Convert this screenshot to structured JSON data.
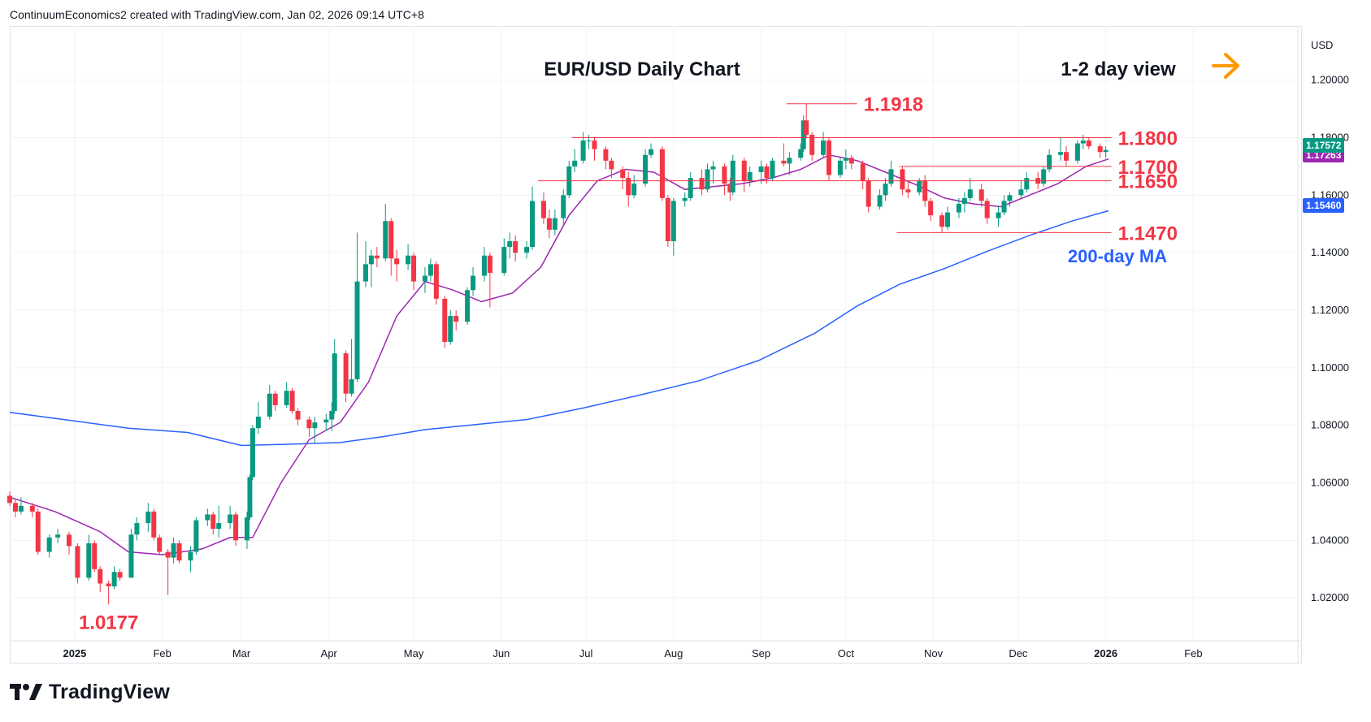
{
  "header": {
    "text": "ContinuumEconomics2 created with TradingView.com, Jan 02, 2026 09:14 UTC+8"
  },
  "brand": {
    "name": "TradingView",
    "logo_icon": "tradingview-logo-icon"
  },
  "colors": {
    "up": "#089981",
    "down": "#f23645",
    "ma20": "#9c27b0",
    "ma200": "#2962ff",
    "level_line": "#f23645",
    "level_text": "#f23645",
    "arrow": "#ff9800",
    "grid": "#f0f3fa",
    "axis_text": "#131722",
    "current_badge": "#089981",
    "ma20_badge": "#9c27b0",
    "ma200_badge": "#2962ff"
  },
  "chart_data": {
    "type": "candlestick",
    "title": "EUR/USD Daily Chart",
    "view_label": "1-2 day view",
    "view_icon": "arrow-right-icon",
    "currency": "USD",
    "y_axis": {
      "ticks": [
        "1.20000",
        "1.18000",
        "1.16000",
        "1.14000",
        "1.12000",
        "1.10000",
        "1.08000",
        "1.06000",
        "1.04000",
        "1.02000"
      ],
      "ylim": [
        1.0,
        1.216
      ]
    },
    "x_axis": {
      "ticks": [
        "2025",
        "Feb",
        "Mar",
        "Apr",
        "May",
        "Jun",
        "Jul",
        "Aug",
        "Sep",
        "Oct",
        "Nov",
        "Dec",
        "2026",
        "Feb"
      ],
      "range": [
        "2024-12-09",
        "2026-03-10"
      ]
    },
    "price_labels": {
      "current": "1.17572",
      "ma20": "1.17263",
      "ma200": "1.15460"
    },
    "levels": [
      {
        "label": "1.1918",
        "value": 1.1918,
        "from": "2025-09-10",
        "to": "2025-10-05"
      },
      {
        "label": "1.1800",
        "value": 1.18,
        "from": "2025-06-26",
        "to": "2026-01-03"
      },
      {
        "label": "1.1700",
        "value": 1.17,
        "from": "2025-10-20",
        "to": "2026-01-03"
      },
      {
        "label": "1.1650",
        "value": 1.165,
        "from": "2025-06-14",
        "to": "2026-01-03"
      },
      {
        "label": "1.1470",
        "value": 1.147,
        "from": "2025-10-19",
        "to": "2026-01-03"
      },
      {
        "label": "1.0177",
        "value": 1.0177,
        "from": "2025-01-13",
        "to": "2025-01-13"
      }
    ],
    "ma200_label": "200-day MA",
    "ma200_series": [
      [
        "2024-12-09",
        1.0845
      ],
      [
        "2025-01-01",
        1.0815
      ],
      [
        "2025-01-20",
        1.079
      ],
      [
        "2025-02-10",
        1.0775
      ],
      [
        "2025-03-01",
        1.073
      ],
      [
        "2025-03-20",
        1.0735
      ],
      [
        "2025-04-05",
        1.074
      ],
      [
        "2025-04-20",
        1.076
      ],
      [
        "2025-05-05",
        1.0785
      ],
      [
        "2025-05-20",
        1.08
      ],
      [
        "2025-06-10",
        1.082
      ],
      [
        "2025-06-30",
        1.086
      ],
      [
        "2025-07-20",
        1.0905
      ],
      [
        "2025-08-10",
        1.0955
      ],
      [
        "2025-08-31",
        1.1025
      ],
      [
        "2025-09-20",
        1.112
      ],
      [
        "2025-10-05",
        1.1215
      ],
      [
        "2025-10-20",
        1.129
      ],
      [
        "2025-11-05",
        1.1345
      ],
      [
        "2025-11-20",
        1.1405
      ],
      [
        "2025-12-05",
        1.146
      ],
      [
        "2025-12-20",
        1.151
      ],
      [
        "2026-01-02",
        1.1546
      ]
    ],
    "ma20_series": [
      [
        "2024-12-09",
        1.055
      ],
      [
        "2024-12-25",
        1.05
      ],
      [
        "2025-01-10",
        1.043
      ],
      [
        "2025-01-20",
        1.036
      ],
      [
        "2025-02-01",
        1.035
      ],
      [
        "2025-02-15",
        1.037
      ],
      [
        "2025-02-25",
        1.041
      ],
      [
        "2025-03-05",
        1.041
      ],
      [
        "2025-03-15",
        1.06
      ],
      [
        "2025-03-25",
        1.075
      ],
      [
        "2025-04-05",
        1.081
      ],
      [
        "2025-04-15",
        1.095
      ],
      [
        "2025-04-25",
        1.118
      ],
      [
        "2025-05-05",
        1.13
      ],
      [
        "2025-05-15",
        1.127
      ],
      [
        "2025-05-25",
        1.123
      ],
      [
        "2025-06-05",
        1.126
      ],
      [
        "2025-06-15",
        1.135
      ],
      [
        "2025-06-25",
        1.153
      ],
      [
        "2025-07-05",
        1.165
      ],
      [
        "2025-07-15",
        1.169
      ],
      [
        "2025-07-25",
        1.168
      ],
      [
        "2025-08-05",
        1.162
      ],
      [
        "2025-08-15",
        1.163
      ],
      [
        "2025-08-25",
        1.164
      ],
      [
        "2025-09-05",
        1.166
      ],
      [
        "2025-09-15",
        1.169
      ],
      [
        "2025-09-25",
        1.174
      ],
      [
        "2025-10-05",
        1.172
      ],
      [
        "2025-10-15",
        1.168
      ],
      [
        "2025-10-25",
        1.164
      ],
      [
        "2025-11-05",
        1.159
      ],
      [
        "2025-11-15",
        1.157
      ],
      [
        "2025-11-25",
        1.156
      ],
      [
        "2025-12-05",
        1.16
      ],
      [
        "2025-12-15",
        1.164
      ],
      [
        "2025-12-25",
        1.17
      ],
      [
        "2026-01-02",
        1.1726
      ]
    ],
    "candles": [
      [
        "2024-12-09",
        1.0555,
        1.057,
        1.052,
        1.053
      ],
      [
        "2024-12-11",
        1.053,
        1.0545,
        1.048,
        1.05
      ],
      [
        "2024-12-13",
        1.05,
        1.055,
        1.049,
        1.052
      ],
      [
        "2024-12-17",
        1.052,
        1.053,
        1.048,
        1.05
      ],
      [
        "2024-12-19",
        1.05,
        1.051,
        1.035,
        1.036
      ],
      [
        "2024-12-23",
        1.036,
        1.042,
        1.034,
        1.041
      ],
      [
        "2024-12-26",
        1.041,
        1.044,
        1.039,
        1.042
      ],
      [
        "2024-12-30",
        1.042,
        1.043,
        1.035,
        1.038
      ],
      [
        "2025-01-02",
        1.038,
        1.039,
        1.025,
        1.027
      ],
      [
        "2025-01-06",
        1.027,
        1.042,
        1.026,
        1.039
      ],
      [
        "2025-01-08",
        1.039,
        1.04,
        1.029,
        1.03
      ],
      [
        "2025-01-10",
        1.03,
        1.031,
        1.022,
        1.025
      ],
      [
        "2025-01-13",
        1.025,
        1.026,
        1.0177,
        1.024
      ],
      [
        "2025-01-15",
        1.024,
        1.031,
        1.023,
        1.029
      ],
      [
        "2025-01-17",
        1.029,
        1.03,
        1.026,
        1.027
      ],
      [
        "2025-01-21",
        1.027,
        1.044,
        1.027,
        1.042
      ],
      [
        "2025-01-23",
        1.042,
        1.048,
        1.04,
        1.046
      ],
      [
        "2025-01-27",
        1.046,
        1.053,
        1.043,
        1.05
      ],
      [
        "2025-01-29",
        1.05,
        1.051,
        1.04,
        1.041
      ],
      [
        "2025-01-31",
        1.041,
        1.042,
        1.035,
        1.036
      ],
      [
        "2025-02-03",
        1.036,
        1.037,
        1.021,
        1.034
      ],
      [
        "2025-02-05",
        1.034,
        1.041,
        1.032,
        1.039
      ],
      [
        "2025-02-07",
        1.039,
        1.04,
        1.032,
        1.033
      ],
      [
        "2025-02-11",
        1.033,
        1.038,
        1.029,
        1.036
      ],
      [
        "2025-02-13",
        1.036,
        1.048,
        1.035,
        1.047
      ],
      [
        "2025-02-17",
        1.047,
        1.051,
        1.045,
        1.049
      ],
      [
        "2025-02-19",
        1.049,
        1.05,
        1.042,
        1.044
      ],
      [
        "2025-02-21",
        1.044,
        1.052,
        1.041,
        1.046
      ],
      [
        "2025-02-25",
        1.046,
        1.052,
        1.044,
        1.049
      ],
      [
        "2025-02-27",
        1.049,
        1.05,
        1.038,
        1.04
      ],
      [
        "2025-03-03",
        1.04,
        1.05,
        1.037,
        1.048
      ],
      [
        "2025-03-04",
        1.048,
        1.063,
        1.047,
        1.062
      ],
      [
        "2025-03-05",
        1.062,
        1.08,
        1.061,
        1.079
      ],
      [
        "2025-03-07",
        1.079,
        1.088,
        1.077,
        1.083
      ],
      [
        "2025-03-11",
        1.083,
        1.094,
        1.082,
        1.091
      ],
      [
        "2025-03-13",
        1.091,
        1.092,
        1.085,
        1.087
      ],
      [
        "2025-03-17",
        1.087,
        1.095,
        1.086,
        1.092
      ],
      [
        "2025-03-19",
        1.092,
        1.093,
        1.084,
        1.085
      ],
      [
        "2025-03-21",
        1.085,
        1.086,
        1.08,
        1.082
      ],
      [
        "2025-03-25",
        1.082,
        1.083,
        1.076,
        1.079
      ],
      [
        "2025-03-27",
        1.079,
        1.083,
        1.074,
        1.081
      ],
      [
        "2025-03-31",
        1.081,
        1.084,
        1.078,
        1.082
      ],
      [
        "2025-04-02",
        1.082,
        1.088,
        1.078,
        1.085
      ],
      [
        "2025-04-03",
        1.085,
        1.11,
        1.084,
        1.105
      ],
      [
        "2025-04-07",
        1.105,
        1.106,
        1.088,
        1.091
      ],
      [
        "2025-04-09",
        1.091,
        1.11,
        1.09,
        1.096
      ],
      [
        "2025-04-11",
        1.096,
        1.147,
        1.095,
        1.13
      ],
      [
        "2025-04-14",
        1.13,
        1.144,
        1.128,
        1.136
      ],
      [
        "2025-04-16",
        1.136,
        1.141,
        1.128,
        1.139
      ],
      [
        "2025-04-18",
        1.139,
        1.142,
        1.135,
        1.138
      ],
      [
        "2025-04-21",
        1.138,
        1.157,
        1.137,
        1.151
      ],
      [
        "2025-04-23",
        1.151,
        1.152,
        1.132,
        1.138
      ],
      [
        "2025-04-25",
        1.138,
        1.141,
        1.13,
        1.136
      ],
      [
        "2025-04-29",
        1.136,
        1.143,
        1.134,
        1.139
      ],
      [
        "2025-05-01",
        1.139,
        1.14,
        1.127,
        1.13
      ],
      [
        "2025-05-05",
        1.13,
        1.135,
        1.126,
        1.132
      ],
      [
        "2025-05-07",
        1.132,
        1.138,
        1.13,
        1.136
      ],
      [
        "2025-05-09",
        1.136,
        1.137,
        1.122,
        1.124
      ],
      [
        "2025-05-12",
        1.124,
        1.125,
        1.107,
        1.109
      ],
      [
        "2025-05-14",
        1.109,
        1.12,
        1.108,
        1.118
      ],
      [
        "2025-05-16",
        1.118,
        1.12,
        1.113,
        1.116
      ],
      [
        "2025-05-20",
        1.116,
        1.128,
        1.115,
        1.127
      ],
      [
        "2025-05-22",
        1.127,
        1.135,
        1.125,
        1.132
      ],
      [
        "2025-05-26",
        1.132,
        1.142,
        1.13,
        1.139
      ],
      [
        "2025-05-28",
        1.139,
        1.14,
        1.121,
        1.133
      ],
      [
        "2025-06-02",
        1.133,
        1.145,
        1.132,
        1.142
      ],
      [
        "2025-06-04",
        1.142,
        1.147,
        1.138,
        1.144
      ],
      [
        "2025-06-06",
        1.144,
        1.146,
        1.137,
        1.14
      ],
      [
        "2025-06-10",
        1.14,
        1.144,
        1.138,
        1.142
      ],
      [
        "2025-06-12",
        1.142,
        1.163,
        1.141,
        1.158
      ],
      [
        "2025-06-16",
        1.158,
        1.161,
        1.15,
        1.152
      ],
      [
        "2025-06-18",
        1.152,
        1.155,
        1.145,
        1.148
      ],
      [
        "2025-06-20",
        1.148,
        1.155,
        1.146,
        1.152
      ],
      [
        "2025-06-23",
        1.152,
        1.162,
        1.15,
        1.16
      ],
      [
        "2025-06-25",
        1.16,
        1.172,
        1.159,
        1.17
      ],
      [
        "2025-06-27",
        1.17,
        1.176,
        1.168,
        1.172
      ],
      [
        "2025-06-30",
        1.172,
        1.182,
        1.171,
        1.179
      ],
      [
        "2025-07-02",
        1.179,
        1.181,
        1.176,
        1.179
      ],
      [
        "2025-07-04",
        1.179,
        1.18,
        1.172,
        1.176
      ],
      [
        "2025-07-08",
        1.176,
        1.177,
        1.169,
        1.172
      ],
      [
        "2025-07-10",
        1.172,
        1.173,
        1.166,
        1.169
      ],
      [
        "2025-07-14",
        1.169,
        1.17,
        1.162,
        1.166
      ],
      [
        "2025-07-16",
        1.166,
        1.168,
        1.156,
        1.16
      ],
      [
        "2025-07-18",
        1.16,
        1.167,
        1.159,
        1.164
      ],
      [
        "2025-07-22",
        1.164,
        1.176,
        1.163,
        1.174
      ],
      [
        "2025-07-24",
        1.174,
        1.178,
        1.173,
        1.176
      ],
      [
        "2025-07-28",
        1.176,
        1.177,
        1.158,
        1.159
      ],
      [
        "2025-07-30",
        1.159,
        1.16,
        1.142,
        1.144
      ],
      [
        "2025-08-01",
        1.144,
        1.159,
        1.139,
        1.158
      ],
      [
        "2025-08-05",
        1.158,
        1.161,
        1.156,
        1.159
      ],
      [
        "2025-08-07",
        1.159,
        1.168,
        1.158,
        1.166
      ],
      [
        "2025-08-11",
        1.166,
        1.169,
        1.16,
        1.162
      ],
      [
        "2025-08-13",
        1.162,
        1.171,
        1.161,
        1.169
      ],
      [
        "2025-08-15",
        1.169,
        1.172,
        1.164,
        1.17
      ],
      [
        "2025-08-19",
        1.17,
        1.171,
        1.16,
        1.164
      ],
      [
        "2025-08-21",
        1.164,
        1.166,
        1.158,
        1.161
      ],
      [
        "2025-08-22",
        1.161,
        1.174,
        1.16,
        1.172
      ],
      [
        "2025-08-26",
        1.172,
        1.173,
        1.161,
        1.165
      ],
      [
        "2025-08-28",
        1.165,
        1.17,
        1.163,
        1.168
      ],
      [
        "2025-09-01",
        1.168,
        1.172,
        1.164,
        1.17
      ],
      [
        "2025-09-03",
        1.17,
        1.171,
        1.164,
        1.166
      ],
      [
        "2025-09-05",
        1.166,
        1.173,
        1.165,
        1.172
      ],
      [
        "2025-09-09",
        1.172,
        1.178,
        1.17,
        1.171
      ],
      [
        "2025-09-11",
        1.171,
        1.175,
        1.167,
        1.173
      ],
      [
        "2025-09-15",
        1.173,
        1.178,
        1.172,
        1.176
      ],
      [
        "2025-09-16",
        1.176,
        1.1878,
        1.175,
        1.186
      ],
      [
        "2025-09-17",
        1.186,
        1.1918,
        1.18,
        1.181
      ],
      [
        "2025-09-19",
        1.181,
        1.182,
        1.172,
        1.174
      ],
      [
        "2025-09-23",
        1.174,
        1.182,
        1.173,
        1.179
      ],
      [
        "2025-09-25",
        1.179,
        1.18,
        1.165,
        1.167
      ],
      [
        "2025-09-29",
        1.167,
        1.173,
        1.166,
        1.172
      ],
      [
        "2025-10-01",
        1.172,
        1.176,
        1.169,
        1.173
      ],
      [
        "2025-10-03",
        1.173,
        1.174,
        1.169,
        1.171
      ],
      [
        "2025-10-07",
        1.171,
        1.172,
        1.162,
        1.165
      ],
      [
        "2025-10-09",
        1.165,
        1.166,
        1.154,
        1.156
      ],
      [
        "2025-10-13",
        1.156,
        1.162,
        1.155,
        1.16
      ],
      [
        "2025-10-15",
        1.16,
        1.166,
        1.158,
        1.164
      ],
      [
        "2025-10-17",
        1.164,
        1.172,
        1.163,
        1.169
      ],
      [
        "2025-10-21",
        1.169,
        1.17,
        1.16,
        1.162
      ],
      [
        "2025-10-23",
        1.162,
        1.165,
        1.159,
        1.161
      ],
      [
        "2025-10-27",
        1.161,
        1.166,
        1.16,
        1.165
      ],
      [
        "2025-10-29",
        1.165,
        1.167,
        1.156,
        1.158
      ],
      [
        "2025-10-31",
        1.158,
        1.159,
        1.151,
        1.153
      ],
      [
        "2025-11-04",
        1.153,
        1.154,
        1.147,
        1.149
      ],
      [
        "2025-11-06",
        1.149,
        1.156,
        1.148,
        1.154
      ],
      [
        "2025-11-10",
        1.154,
        1.159,
        1.152,
        1.157
      ],
      [
        "2025-11-12",
        1.157,
        1.161,
        1.154,
        1.159
      ],
      [
        "2025-11-14",
        1.159,
        1.166,
        1.158,
        1.162
      ],
      [
        "2025-11-18",
        1.162,
        1.164,
        1.156,
        1.158
      ],
      [
        "2025-11-20",
        1.158,
        1.159,
        1.15,
        1.152
      ],
      [
        "2025-11-24",
        1.152,
        1.156,
        1.149,
        1.154
      ],
      [
        "2025-11-26",
        1.154,
        1.16,
        1.153,
        1.158
      ],
      [
        "2025-11-28",
        1.158,
        1.161,
        1.156,
        1.16
      ],
      [
        "2025-12-02",
        1.16,
        1.165,
        1.159,
        1.162
      ],
      [
        "2025-12-04",
        1.162,
        1.168,
        1.161,
        1.166
      ],
      [
        "2025-12-08",
        1.166,
        1.168,
        1.162,
        1.164
      ],
      [
        "2025-12-10",
        1.164,
        1.17,
        1.163,
        1.169
      ],
      [
        "2025-12-12",
        1.169,
        1.176,
        1.168,
        1.174
      ],
      [
        "2025-12-16",
        1.174,
        1.18,
        1.172,
        1.175
      ],
      [
        "2025-12-18",
        1.175,
        1.177,
        1.17,
        1.172
      ],
      [
        "2025-12-22",
        1.172,
        1.179,
        1.171,
        1.178
      ],
      [
        "2025-12-24",
        1.178,
        1.181,
        1.176,
        1.179
      ],
      [
        "2025-12-26",
        1.179,
        1.18,
        1.176,
        1.177
      ],
      [
        "2025-12-30",
        1.177,
        1.178,
        1.173,
        1.175
      ],
      [
        "2026-01-01",
        1.175,
        1.177,
        1.173,
        1.1757
      ]
    ]
  }
}
